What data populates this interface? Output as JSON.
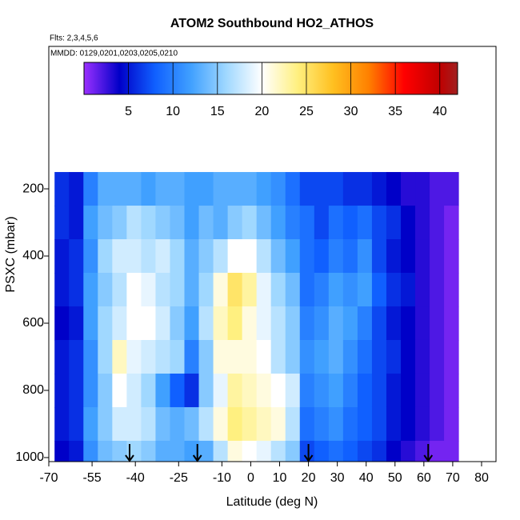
{
  "chart_data": {
    "type": "heatmap",
    "title": "ATOM2 Southbound HO2_ATHOS",
    "subtitle": "Flts: 2,3,4,5,6",
    "annotation": "MMDD: 0129,0201,0203,0205,0210",
    "xlabel": "Latitude (deg N)",
    "ylabel": "PSXC (mbar)",
    "xlim": [
      -70,
      85
    ],
    "ylim": [
      1012,
      -224
    ],
    "xticks": [
      -70,
      -55,
      -40,
      -25,
      -10,
      0,
      10,
      20,
      30,
      40,
      50,
      60,
      70,
      80
    ],
    "yticks": [
      200,
      400,
      600,
      800,
      1000
    ],
    "xbins": [
      -68,
      -63,
      -58,
      -53,
      -48,
      -43,
      -38,
      -33,
      -28,
      -23,
      -18,
      -13,
      -8,
      -3,
      2,
      7,
      12,
      17,
      22,
      27,
      32,
      37,
      42,
      47,
      52,
      57,
      62,
      67,
      72
    ],
    "y": [
      200,
      300,
      400,
      500,
      600,
      700,
      800,
      900,
      1000
    ],
    "z": [
      [
        6,
        5,
        10,
        13,
        13,
        13,
        12,
        13,
        13,
        12,
        12,
        13,
        13,
        13,
        12,
        11,
        9,
        7,
        7,
        7,
        6,
        6,
        5,
        4,
        3,
        3,
        2,
        2
      ],
      [
        6,
        5,
        12,
        14,
        15,
        17,
        16,
        15,
        14,
        12,
        14,
        13,
        15,
        16,
        14,
        12,
        10,
        9,
        7,
        9,
        8,
        9,
        7,
        6,
        4,
        3,
        2,
        1
      ],
      [
        5,
        6,
        11,
        16,
        18,
        18,
        17,
        18,
        16,
        13,
        15,
        17,
        20,
        20,
        17,
        14,
        12,
        9,
        8,
        10,
        9,
        11,
        7,
        5,
        4,
        3,
        2,
        1
      ],
      [
        5,
        6,
        12,
        15,
        17,
        20,
        19,
        17,
        16,
        13,
        16,
        21,
        25,
        23,
        19,
        16,
        14,
        9,
        10,
        12,
        11,
        12,
        8,
        6,
        5,
        3,
        2,
        1
      ],
      [
        4,
        5,
        12,
        16,
        18,
        20,
        20,
        18,
        15,
        12,
        17,
        22,
        24,
        21,
        19,
        17,
        15,
        10,
        11,
        13,
        12,
        10,
        7,
        5,
        4,
        3,
        2,
        1
      ],
      [
        5,
        6,
        11,
        16,
        22,
        19,
        18,
        17,
        16,
        10,
        15,
        21,
        21,
        21,
        20,
        17,
        15,
        11,
        12,
        13,
        11,
        9,
        7,
        6,
        4,
        3,
        2,
        1
      ],
      [
        5,
        6,
        11,
        15,
        20,
        18,
        16,
        12,
        8,
        6,
        15,
        19,
        23,
        22,
        21,
        20,
        18,
        10,
        11,
        12,
        10,
        8,
        7,
        5,
        4,
        3,
        2,
        1
      ],
      [
        5,
        6,
        12,
        15,
        18,
        18,
        17,
        14,
        13,
        14,
        17,
        21,
        24,
        23,
        22,
        21,
        17,
        9,
        10,
        11,
        9,
        8,
        7,
        5,
        4,
        3,
        2,
        1
      ],
      [
        4,
        5,
        11,
        14,
        15,
        16,
        15,
        13,
        13,
        12,
        13,
        17,
        21,
        20,
        19,
        17,
        15,
        7,
        8,
        9,
        8,
        7,
        6,
        4,
        3,
        2,
        1,
        1
      ]
    ],
    "clim": [
      0,
      42
    ],
    "cbticks": [
      5,
      10,
      15,
      20,
      25,
      30,
      35,
      40
    ],
    "colorscale": [
      [
        0,
        "#9b30ff"
      ],
      [
        4,
        "#0000c8"
      ],
      [
        8,
        "#1060ff"
      ],
      [
        12,
        "#40a0ff"
      ],
      [
        16,
        "#a0d8ff"
      ],
      [
        20,
        "#ffffff"
      ],
      [
        24,
        "#fff080"
      ],
      [
        28,
        "#ffc020"
      ],
      [
        32,
        "#ff8000"
      ],
      [
        36,
        "#ff0000"
      ],
      [
        40,
        "#c00000"
      ],
      [
        42,
        "#a02020"
      ]
    ],
    "arrows": [
      -42,
      -18.5,
      20,
      61.5
    ]
  }
}
